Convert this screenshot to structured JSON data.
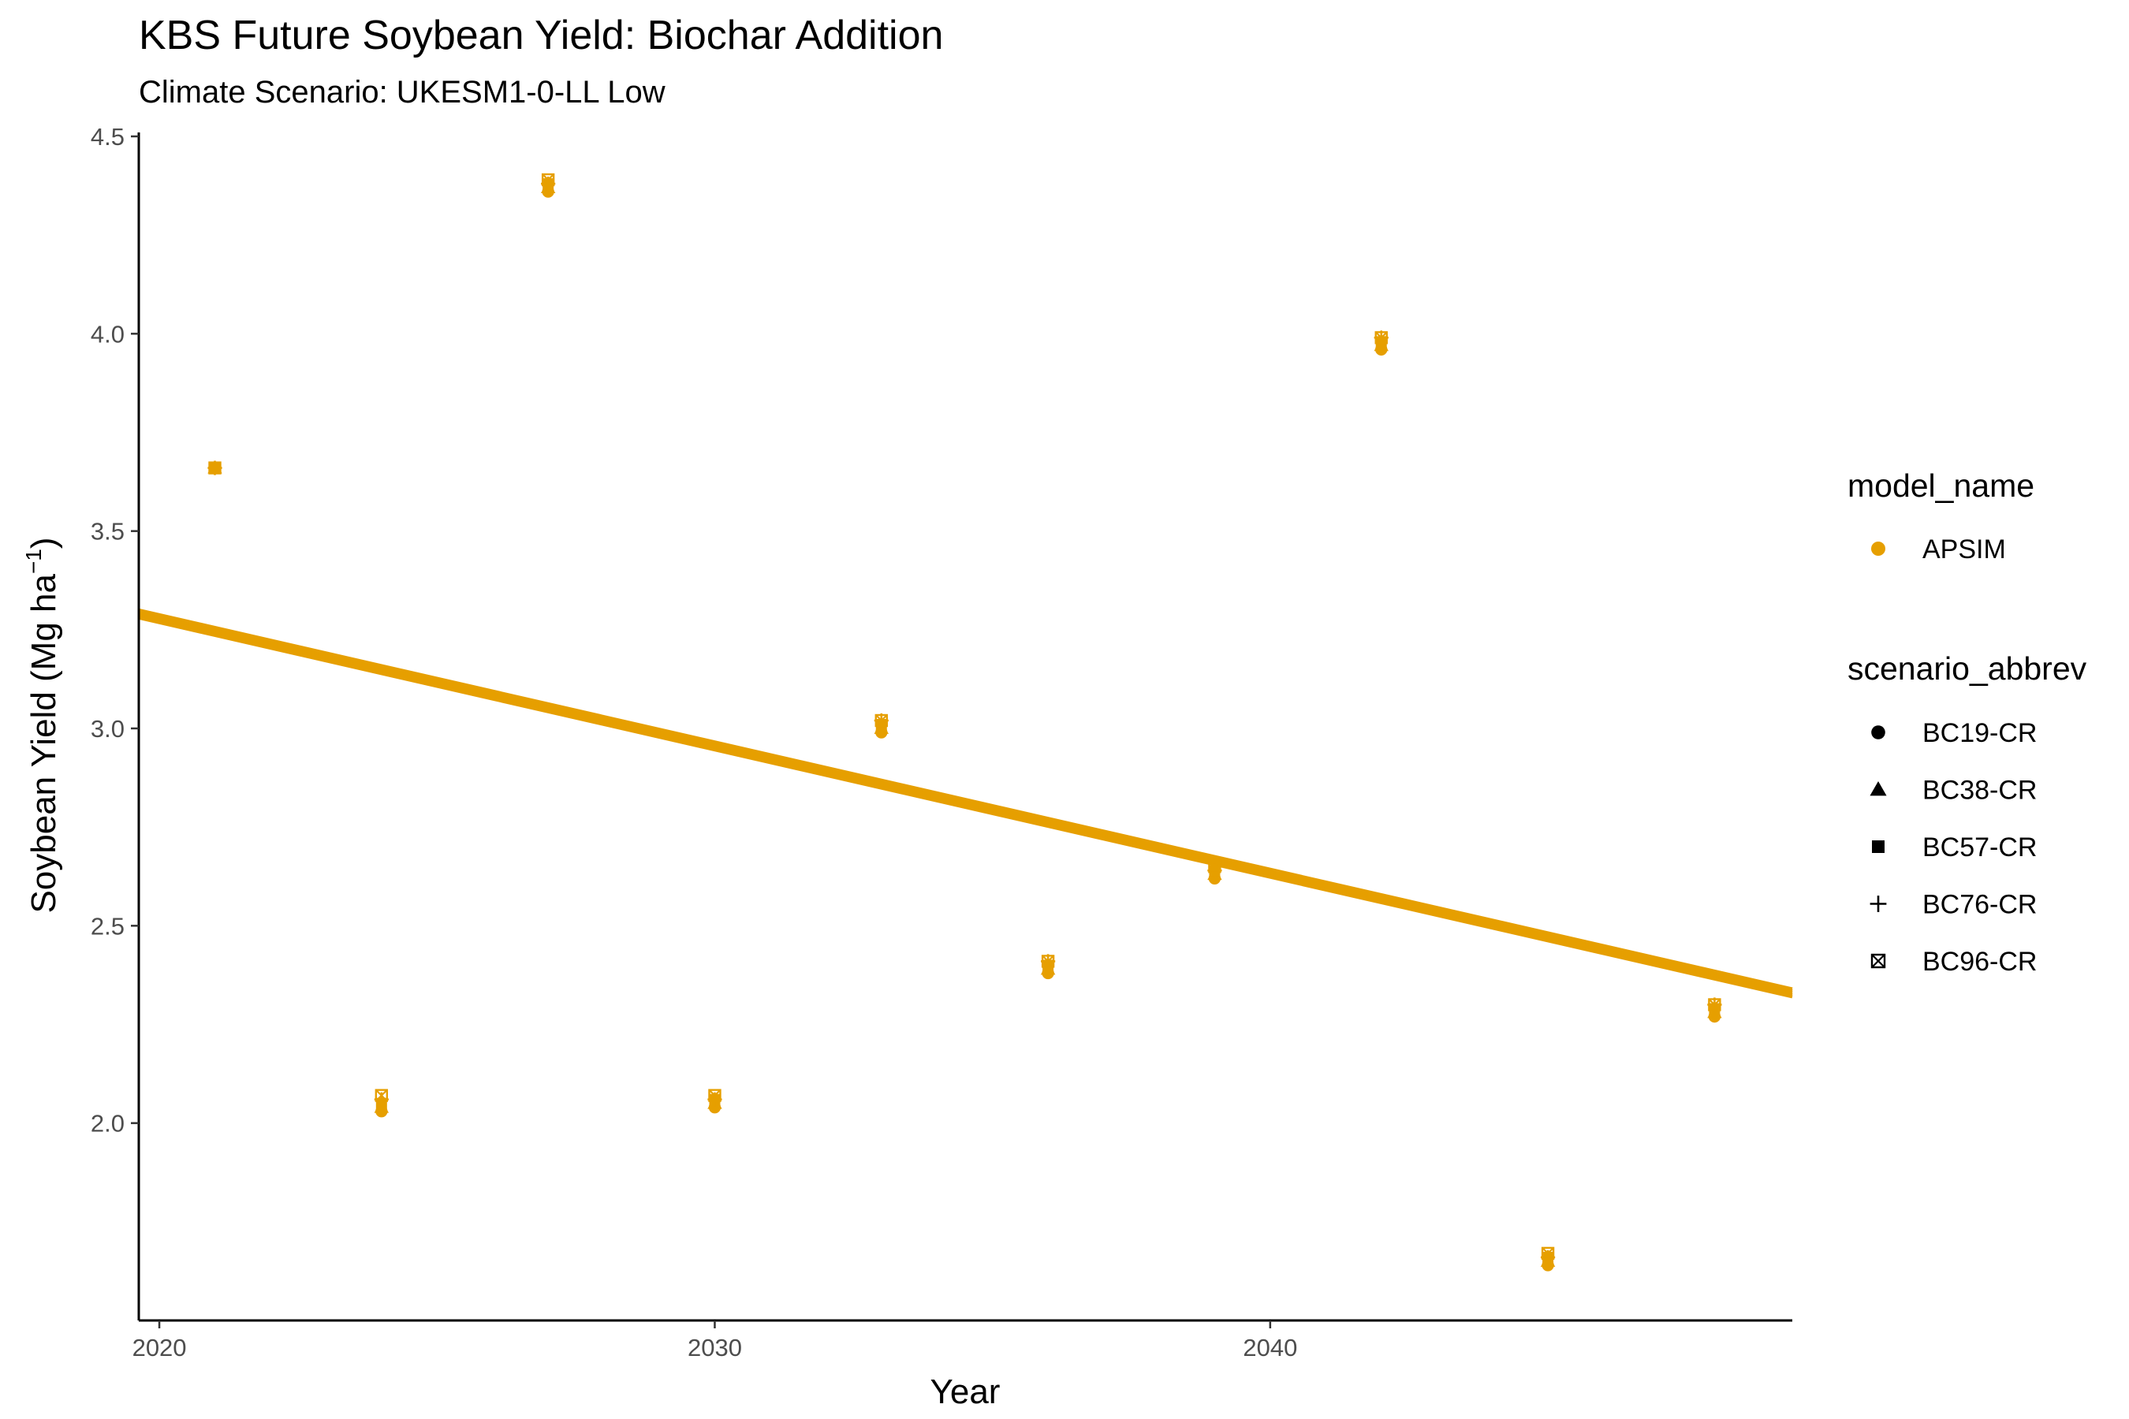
{
  "chart_data": {
    "type": "scatter",
    "title": "KBS Future Soybean Yield: Biochar Addition",
    "subtitle": "Climate Scenario: UKESM1-0-LL Low",
    "xlabel": "Year",
    "ylabel": "Soybean Yield (Mg ha",
    "ylabel_sup": "−1",
    "ylabel_close": ")",
    "xlim": [
      2019.63,
      2049.4
    ],
    "ylim": [
      1.5,
      4.51
    ],
    "x_ticks": [
      2020,
      2030,
      2040
    ],
    "y_ticks": [
      2.0,
      2.5,
      3.0,
      3.5,
      4.0,
      4.5
    ],
    "x_tick_labels": [
      "2020",
      "2030",
      "2040"
    ],
    "y_tick_labels": [
      "2.0",
      "2.5",
      "3.0",
      "3.5",
      "4.0",
      "4.5"
    ],
    "grid": false,
    "legend_position": "right",
    "color": "#E69F00",
    "legend": {
      "color_title": "model_name",
      "color_entries": [
        {
          "name": "APSIM",
          "color": "#E69F00"
        }
      ],
      "shape_title": "scenario_abbrev",
      "shape_entries": [
        {
          "name": "BC19-CR",
          "shape": "circle"
        },
        {
          "name": "BC38-CR",
          "shape": "triangle"
        },
        {
          "name": "BC57-CR",
          "shape": "square"
        },
        {
          "name": "BC76-CR",
          "shape": "plus"
        },
        {
          "name": "BC96-CR",
          "shape": "square-x"
        }
      ]
    },
    "series": [
      {
        "name": "BC19-CR",
        "shape": "circle",
        "x": [
          2021,
          2024,
          2027,
          2030,
          2033,
          2036,
          2039,
          2042,
          2045,
          2048
        ],
        "y": [
          3.66,
          2.03,
          4.36,
          2.04,
          2.99,
          2.38,
          2.62,
          3.96,
          1.64,
          2.27
        ]
      },
      {
        "name": "BC38-CR",
        "shape": "triangle",
        "x": [
          2021,
          2024,
          2027,
          2030,
          2033,
          2036,
          2039,
          2042,
          2045,
          2048
        ],
        "y": [
          3.66,
          2.04,
          4.37,
          2.05,
          3.0,
          2.39,
          2.63,
          3.97,
          1.65,
          2.28
        ]
      },
      {
        "name": "BC57-CR",
        "shape": "square",
        "x": [
          2021,
          2024,
          2027,
          2030,
          2033,
          2036,
          2039,
          2042,
          2045,
          2048
        ],
        "y": [
          3.66,
          2.05,
          4.38,
          2.06,
          3.01,
          2.4,
          2.64,
          3.98,
          1.66,
          2.29
        ]
      },
      {
        "name": "BC76-CR",
        "shape": "plus",
        "x": [
          2021,
          2024,
          2027,
          2030,
          2033,
          2036,
          2039,
          2042,
          2045,
          2048
        ],
        "y": [
          3.66,
          2.06,
          4.38,
          2.06,
          3.02,
          2.41,
          2.64,
          3.99,
          1.66,
          2.3
        ]
      },
      {
        "name": "BC96-CR",
        "shape": "square-x",
        "x": [
          2021,
          2024,
          2027,
          2030,
          2033,
          2036,
          2039,
          2042,
          2045,
          2048
        ],
        "y": [
          3.66,
          2.07,
          4.39,
          2.07,
          3.02,
          2.41,
          2.65,
          3.99,
          1.67,
          2.3
        ]
      }
    ],
    "trend_lines": [
      {
        "series": "BC19-CR",
        "x": [
          2019.63,
          2049.4
        ],
        "y": [
          3.28,
          2.32
        ]
      },
      {
        "series": "BC38-CR",
        "x": [
          2019.63,
          2049.4
        ],
        "y": [
          3.285,
          2.325
        ]
      },
      {
        "series": "BC57-CR",
        "x": [
          2019.63,
          2049.4
        ],
        "y": [
          3.29,
          2.33
        ]
      },
      {
        "series": "BC76-CR",
        "x": [
          2019.63,
          2049.4
        ],
        "y": [
          3.295,
          2.335
        ]
      },
      {
        "series": "BC96-CR",
        "x": [
          2019.63,
          2049.4
        ],
        "y": [
          3.3,
          2.34
        ]
      }
    ]
  }
}
